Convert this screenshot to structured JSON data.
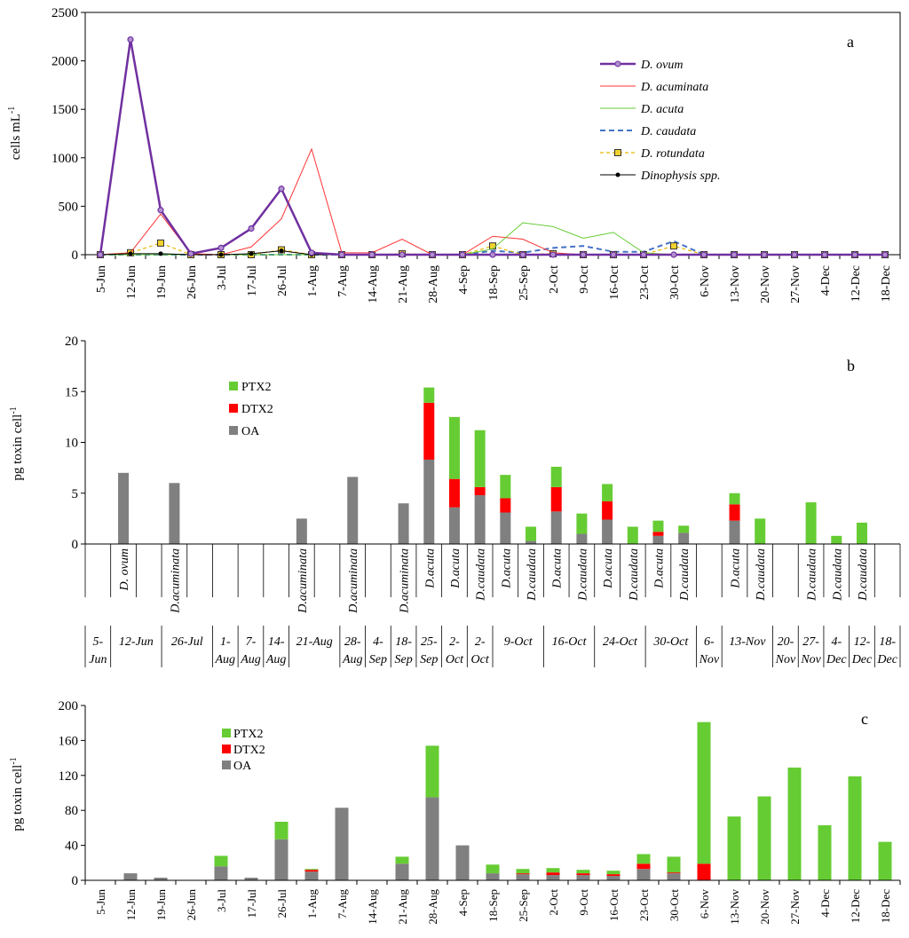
{
  "chart_data": [
    {
      "panel": "a",
      "type": "line",
      "panel_label": "a",
      "ylabel": "cells mL",
      "ylabel_sup": "-1",
      "ylim": [
        0,
        2500
      ],
      "yticks": [
        0,
        500,
        1000,
        1500,
        2000,
        2500
      ],
      "categories": [
        "5-Jun",
        "12-Jun",
        "19-Jun",
        "26-Jun",
        "3-Jul",
        "17-Jul",
        "26-Jul",
        "1-Aug",
        "7-Aug",
        "14-Aug",
        "21-Aug",
        "28-Aug",
        "4-Sep",
        "18-Sep",
        "25-Sep",
        "2-Oct",
        "9-Oct",
        "16-Oct",
        "23-Oct",
        "30-Oct",
        "6-Nov",
        "13-Nov",
        "20-Nov",
        "27-Nov",
        "4-Dec",
        "12-Dec",
        "18-Dec"
      ],
      "series": [
        {
          "name": "D.  ovum",
          "color": "#7030A0",
          "style": "bold-diamond",
          "values": [
            0,
            2220,
            460,
            10,
            70,
            270,
            680,
            20,
            0,
            0,
            0,
            0,
            0,
            0,
            0,
            0,
            0,
            0,
            0,
            0,
            0,
            0,
            0,
            0,
            0,
            0,
            0
          ]
        },
        {
          "name": "D. acuminata",
          "color": "#FF3333",
          "style": "thin",
          "values": [
            0,
            20,
            420,
            10,
            0,
            80,
            370,
            1090,
            20,
            20,
            160,
            0,
            0,
            190,
            160,
            20,
            0,
            0,
            0,
            0,
            0,
            0,
            0,
            0,
            0,
            0,
            0
          ]
        },
        {
          "name": "D. acuta",
          "color": "#66CC33",
          "style": "thin",
          "values": [
            0,
            0,
            0,
            0,
            0,
            0,
            0,
            0,
            0,
            0,
            0,
            0,
            0,
            60,
            330,
            290,
            170,
            230,
            20,
            0,
            0,
            0,
            0,
            0,
            0,
            0,
            0
          ]
        },
        {
          "name": "D. caudata",
          "color": "#4472C4",
          "style": "dashed",
          "values": [
            0,
            0,
            0,
            0,
            0,
            0,
            0,
            0,
            0,
            0,
            0,
            0,
            0,
            40,
            20,
            70,
            90,
            30,
            30,
            140,
            0,
            0,
            0,
            0,
            0,
            0,
            0
          ]
        },
        {
          "name": "D. rotundata",
          "color": "#E6B800",
          "style": "square",
          "values": [
            0,
            20,
            120,
            0,
            0,
            0,
            50,
            0,
            0,
            0,
            10,
            0,
            0,
            90,
            0,
            10,
            0,
            0,
            0,
            90,
            0,
            0,
            0,
            0,
            0,
            0,
            0
          ]
        },
        {
          "name": "Dinophysis spp.",
          "color": "#000000",
          "style": "dot",
          "values": [
            0,
            10,
            10,
            0,
            0,
            10,
            40,
            0,
            0,
            0,
            0,
            0,
            0,
            0,
            0,
            0,
            0,
            0,
            0,
            0,
            0,
            0,
            0,
            0,
            0,
            0,
            0
          ]
        }
      ]
    },
    {
      "panel": "b",
      "type": "bar",
      "stacked": true,
      "panel_label": "b",
      "ylabel": "pg  toxin  cell",
      "ylabel_sup": "-1",
      "ylim": [
        0,
        20
      ],
      "yticks": [
        0,
        5,
        10,
        15,
        20
      ],
      "legend": [
        "PTX2",
        "DTX2",
        "OA"
      ],
      "colors": {
        "OA": "#808080",
        "DTX2": "#FF0000",
        "PTX2": "#66CC33"
      },
      "bars": [
        {
          "slot": 1,
          "OA": 7.0,
          "DTX2": 0,
          "PTX2": 0,
          "species": "D. ovum"
        },
        {
          "slot": 3,
          "OA": 6.0,
          "DTX2": 0,
          "PTX2": 0,
          "species": "D.acuminata"
        },
        {
          "slot": 8,
          "OA": 2.5,
          "DTX2": 0,
          "PTX2": 0,
          "species": "D.acuminata"
        },
        {
          "slot": 10,
          "OA": 6.6,
          "DTX2": 0,
          "PTX2": 0,
          "species": "D.acuminata"
        },
        {
          "slot": 12,
          "OA": 4.0,
          "DTX2": 0,
          "PTX2": 0,
          "species": "D.acuminata"
        },
        {
          "slot": 13,
          "OA": 8.3,
          "DTX2": 5.6,
          "PTX2": 1.5,
          "species": "D.acuta"
        },
        {
          "slot": 14,
          "OA": 3.6,
          "DTX2": 2.8,
          "PTX2": 6.1,
          "species": "D.acuta"
        },
        {
          "slot": 15,
          "OA": 4.8,
          "DTX2": 0.8,
          "PTX2": 5.6,
          "species": "D.caudata"
        },
        {
          "slot": 16,
          "OA": 3.1,
          "DTX2": 1.4,
          "PTX2": 2.3,
          "species": "D.acuta"
        },
        {
          "slot": 17,
          "OA": 0.3,
          "DTX2": 0,
          "PTX2": 1.4,
          "species": "D.caudata"
        },
        {
          "slot": 18,
          "OA": 3.2,
          "DTX2": 2.4,
          "PTX2": 2.0,
          "species": "D.acuta"
        },
        {
          "slot": 19,
          "OA": 1.0,
          "DTX2": 0,
          "PTX2": 2.0,
          "species": "D.caudata"
        },
        {
          "slot": 20,
          "OA": 2.4,
          "DTX2": 1.8,
          "PTX2": 1.7,
          "species": "D.acuta"
        },
        {
          "slot": 21,
          "OA": 0,
          "DTX2": 0,
          "PTX2": 1.7,
          "species": "D.caudata"
        },
        {
          "slot": 22,
          "OA": 0.8,
          "DTX2": 0.4,
          "PTX2": 1.1,
          "species": "D.acuta"
        },
        {
          "slot": 23,
          "OA": 1.1,
          "DTX2": 0,
          "PTX2": 0.7,
          "species": "D.caudata"
        },
        {
          "slot": 25,
          "OA": 2.3,
          "DTX2": 1.6,
          "PTX2": 1.1,
          "species": "D.acuta"
        },
        {
          "slot": 26,
          "OA": 0,
          "DTX2": 0,
          "PTX2": 2.5,
          "species": "D.caudata"
        },
        {
          "slot": 28,
          "OA": 0,
          "DTX2": 0,
          "PTX2": 4.1,
          "species": "D.caudata"
        },
        {
          "slot": 29,
          "OA": 0,
          "DTX2": 0,
          "PTX2": 0.8,
          "species": "D.caudata"
        },
        {
          "slot": 30,
          "OA": 0,
          "DTX2": 0,
          "PTX2": 2.1,
          "species": "D.caudata"
        }
      ],
      "date_groups": [
        {
          "label": [
            "5-",
            "Jun"
          ],
          "start": 0,
          "end": 1
        },
        {
          "label": [
            "12-Jun"
          ],
          "start": 1,
          "end": 3
        },
        {
          "label": [
            "26-Jul"
          ],
          "start": 3,
          "end": 5
        },
        {
          "label": [
            "1-",
            "Aug"
          ],
          "start": 5,
          "end": 6
        },
        {
          "label": [
            "7-",
            "Aug"
          ],
          "start": 6,
          "end": 7
        },
        {
          "label": [
            "14-",
            "Aug"
          ],
          "start": 7,
          "end": 8
        },
        {
          "label": [
            "21-Aug"
          ],
          "start": 8,
          "end": 10
        },
        {
          "label": [
            "28-",
            "Aug"
          ],
          "start": 10,
          "end": 11
        },
        {
          "label": [
            "4-",
            "Sep"
          ],
          "start": 11,
          "end": 12
        },
        {
          "label": [
            "18-",
            "Sep"
          ],
          "start": 12,
          "end": 13
        },
        {
          "label": [
            "25-",
            "Sep"
          ],
          "start": 13,
          "end": 14
        },
        {
          "label": [
            "2-",
            "Oct"
          ],
          "start": 14,
          "end": 15
        },
        {
          "label": [
            "2-",
            "Oct"
          ],
          "start": 15,
          "end": 16
        },
        {
          "label": [
            "9-Oct"
          ],
          "start": 16,
          "end": 18
        },
        {
          "label": [
            "16-Oct"
          ],
          "start": 18,
          "end": 20
        },
        {
          "label": [
            "24-Oct"
          ],
          "start": 20,
          "end": 22
        },
        {
          "label": [
            "30-Oct"
          ],
          "start": 22,
          "end": 24
        },
        {
          "label": [
            "6-",
            "Nov"
          ],
          "start": 24,
          "end": 25
        },
        {
          "label": [
            "13-Nov"
          ],
          "start": 25,
          "end": 27
        },
        {
          "label": [
            "20-",
            "Nov"
          ],
          "start": 27,
          "end": 28
        },
        {
          "label": [
            "27-",
            "Nov"
          ],
          "start": 28,
          "end": 29
        },
        {
          "label": [
            "4-",
            "Dec"
          ],
          "start": 29,
          "end": 30
        },
        {
          "label": [
            "12-",
            "Dec"
          ],
          "start": 30,
          "end": 31
        },
        {
          "label": [
            "18-",
            "Dec"
          ],
          "start": 31,
          "end": 32
        }
      ]
    },
    {
      "panel": "c",
      "type": "bar",
      "stacked": true,
      "panel_label": "c",
      "ylabel": "pg  toxin  cell",
      "ylabel_sup": "-1",
      "ylim": [
        0,
        200
      ],
      "yticks": [
        0,
        40,
        80,
        120,
        160,
        200
      ],
      "legend": [
        "PTX2",
        "DTX2",
        "OA"
      ],
      "colors": {
        "OA": "#808080",
        "DTX2": "#FF0000",
        "PTX2": "#66CC33"
      },
      "categories": [
        "5-Jun",
        "12-Jun",
        "19-Jun",
        "26-Jun",
        "3-Jul",
        "17-Jul",
        "26-Jul",
        "1-Aug",
        "7-Aug",
        "14-Aug",
        "21-Aug",
        "28-Aug",
        "4-Sep",
        "18-Sep",
        "25-Sep",
        "2-Oct",
        "9-Oct",
        "16-Oct",
        "23-Oct",
        "30-Oct",
        "6-Nov",
        "13-Nov",
        "20-Nov",
        "27-Nov",
        "4-Dec",
        "12-Dec",
        "18-Dec"
      ],
      "OA": [
        0,
        8,
        3,
        0,
        16,
        3,
        47,
        10,
        83,
        0,
        19,
        95,
        40,
        8,
        7,
        6,
        6,
        5,
        13,
        8,
        0,
        0,
        0,
        0,
        0,
        0,
        0
      ],
      "DTX2": [
        0,
        0,
        0,
        0,
        0,
        0,
        0,
        2,
        0,
        0,
        0,
        0,
        0,
        0,
        1,
        3,
        2,
        2,
        6,
        1,
        19,
        0,
        0,
        0,
        0,
        0,
        0
      ],
      "PTX2": [
        0,
        0,
        0,
        0,
        12,
        0,
        20,
        1,
        0,
        0,
        8,
        59,
        0,
        10,
        5,
        5,
        4,
        4,
        11,
        18,
        162,
        73,
        96,
        129,
        63,
        119,
        44
      ]
    }
  ]
}
